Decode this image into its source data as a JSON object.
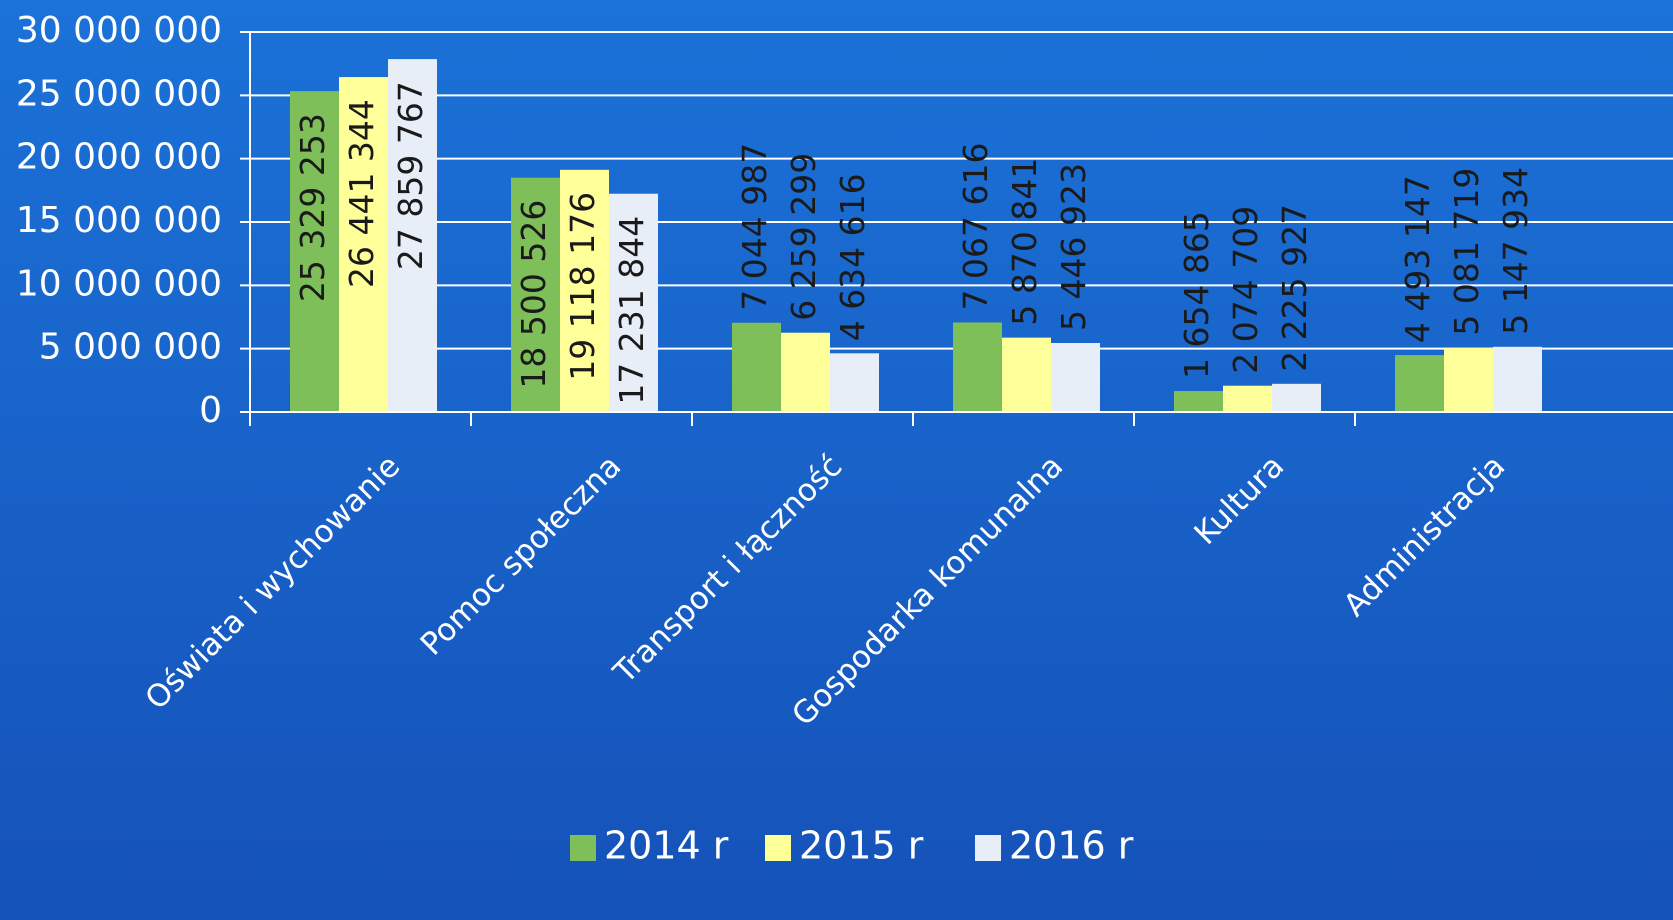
{
  "chart_data": {
    "type": "bar",
    "categories": [
      "Oświata i wychowanie",
      "Pomoc społeczna",
      "Transport i łączność",
      "Gospodarka komunalna",
      "Kultura",
      "Administracja"
    ],
    "series": [
      {
        "name": "2014 r",
        "color": "#7fbf5a",
        "values": [
          25329253,
          18500526,
          7044987,
          7067616,
          1654865,
          4493147
        ],
        "value_labels": [
          "25 329 253",
          "18 500 526",
          "7 044 987",
          "7 067 616",
          "1 654 865",
          "4 493 147"
        ]
      },
      {
        "name": "2015 r",
        "color": "#ffff99",
        "values": [
          26441344,
          19118176,
          6259299,
          5870841,
          2074709,
          5081719
        ],
        "value_labels": [
          "26 441 344",
          "19 118 176",
          "6 259 299",
          "5 870 841",
          "2 074 709",
          "5 081 719"
        ]
      },
      {
        "name": "2016 r",
        "color": "#e8eef8",
        "values": [
          27859767,
          17231844,
          4634616,
          5446923,
          2225927,
          5147934
        ],
        "value_labels": [
          "27 859 767",
          "17 231 844",
          "4 634 616",
          "5 446 923",
          "2 225 927",
          "5 147 934"
        ]
      }
    ],
    "ylim": [
      0,
      30000000
    ],
    "yticks": [
      0,
      {
        "value": 5000000,
        "label": "5 000 000"
      },
      {
        "value": 10000000,
        "label": "10 000 000"
      },
      {
        "value": 15000000,
        "label": "15 000 000"
      },
      {
        "value": 20000000,
        "label": "20 000 000"
      },
      {
        "value": 25000000,
        "label": "25 000 000"
      },
      {
        "value": 30000000,
        "label": "30 000 000"
      }
    ],
    "grid": true,
    "legend": "bottom"
  }
}
